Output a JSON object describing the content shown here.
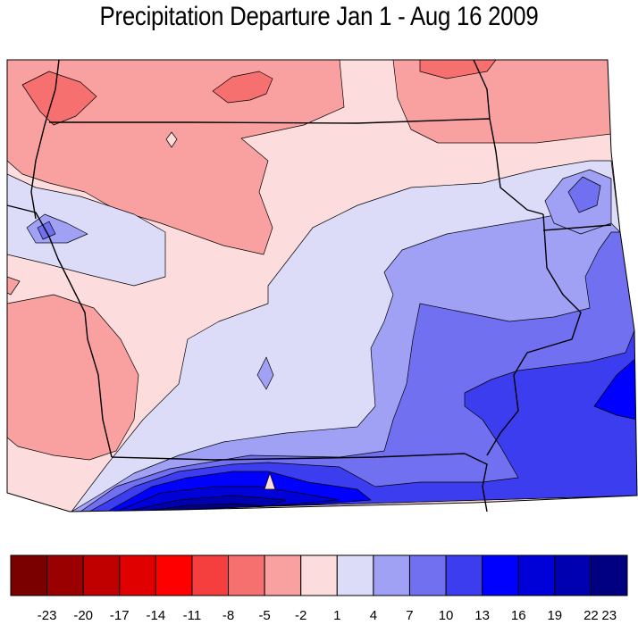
{
  "title": "Precipitation Departure Jan 1 - Aug 16 2009",
  "legend": {
    "bins": [
      {
        "color": "#7a0000"
      },
      {
        "color": "#9b0000"
      },
      {
        "color": "#c00000"
      },
      {
        "color": "#e00000"
      },
      {
        "color": "#ff0000"
      },
      {
        "color": "#f53e3e"
      },
      {
        "color": "#f77070"
      },
      {
        "color": "#f9a0a0"
      },
      {
        "color": "#fcdcdc"
      },
      {
        "color": "#dcdcf9"
      },
      {
        "color": "#a0a0f5"
      },
      {
        "color": "#7070f0"
      },
      {
        "color": "#3d3df0"
      },
      {
        "color": "#0000ff"
      },
      {
        "color": "#0000d8"
      },
      {
        "color": "#0000b0"
      },
      {
        "color": "#000080"
      }
    ],
    "tick_labels": [
      "-23",
      "-20",
      "-17",
      "-14",
      "-11",
      "-8",
      "-5",
      "-2",
      "1",
      "4",
      "7",
      "10",
      "13",
      "16",
      "19",
      "22",
      "23"
    ]
  },
  "map": {
    "colors": {
      "neg5": "#f77070",
      "neg2": "#f9a0a0",
      "pos1": "#fcdcdc",
      "pos4": "#dcdcf9",
      "pos7": "#a0a0f5",
      "pos10": "#7070f0",
      "pos13": "#3d3df0",
      "pos16": "#0000ff",
      "pos19": "#0000d8",
      "pos22": "#0000b0",
      "pos23": "#000080"
    }
  }
}
